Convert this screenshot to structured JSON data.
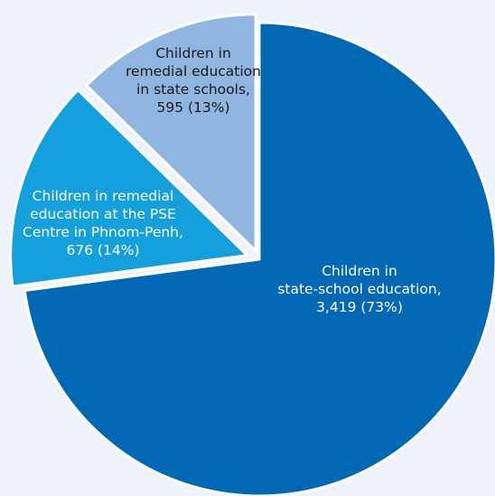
{
  "chart_data": {
    "type": "pie",
    "title": "",
    "slices": [
      {
        "name": "Children in state-school education",
        "value": 3419,
        "percent": 73,
        "color": "#0068b4",
        "label_lines": [
          "Children in",
          "state-school education,",
          "3,419 (73%)"
        ],
        "label_color": "#ffffff"
      },
      {
        "name": "Children in remedial education at the PSE Centre in Phnom-Penh",
        "value": 676,
        "percent": 14,
        "color": "#14a0dc",
        "label_lines": [
          "Children in remedial",
          "education at the PSE",
          "Centre in Phnom-Penh,",
          "676 (14%)"
        ],
        "label_color": "#ffffff"
      },
      {
        "name": "Children in remedial education in state schools",
        "value": 595,
        "percent": 13,
        "color": "#8fb6e1",
        "label_lines": [
          "Children in",
          "remedial education",
          "in state schools,",
          "595 (13%)"
        ],
        "label_color": "#1a1a1a"
      }
    ],
    "legend": "none",
    "background": "#eef3fb"
  }
}
